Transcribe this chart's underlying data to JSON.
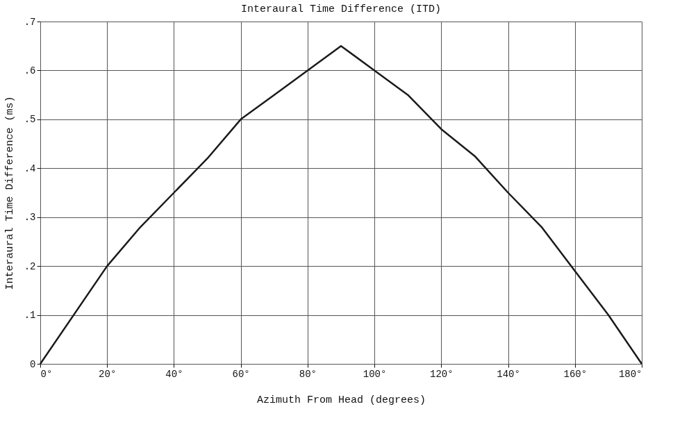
{
  "chart_data": {
    "type": "line",
    "title": "Interaural Time Difference (ITD)",
    "xlabel": "Azimuth From Head (degrees)",
    "ylabel": "Interaural Time Difference (ms)",
    "x": [
      0,
      20,
      30,
      40,
      50,
      60,
      70,
      80,
      90,
      100,
      110,
      120,
      130,
      140,
      150,
      160,
      170,
      180
    ],
    "series": [
      {
        "color": "#1a1a1a",
        "values": [
          0,
          0.2,
          0.28,
          0.35,
          0.42,
          0.5,
          0.55,
          0.6,
          0.65,
          0.6,
          0.55,
          0.48,
          0.425,
          0.35,
          0.28,
          0.19,
          0.1,
          0
        ]
      }
    ],
    "xlim": [
      0,
      180
    ],
    "ylim": [
      0,
      0.7
    ],
    "xticks": [
      {
        "value": 0,
        "label": "0°"
      },
      {
        "value": 20,
        "label": "20°"
      },
      {
        "value": 40,
        "label": "40°"
      },
      {
        "value": 60,
        "label": "60°"
      },
      {
        "value": 80,
        "label": "80°"
      },
      {
        "value": 100,
        "label": "100°"
      },
      {
        "value": 120,
        "label": "120°"
      },
      {
        "value": 140,
        "label": "140°"
      },
      {
        "value": 160,
        "label": "160°"
      },
      {
        "value": 180,
        "label": "180°"
      }
    ],
    "yticks": [
      0,
      {
        "value": 0.1,
        "label": ".1"
      },
      {
        "value": 0.2,
        "label": ".2"
      },
      {
        "value": 0.3,
        "label": ".3"
      },
      {
        "value": 0.4,
        "label": ".4"
      },
      {
        "value": 0.5,
        "label": ".5"
      },
      {
        "value": 0.6,
        "label": ".6"
      },
      {
        "value": 0.7,
        "label": ".7"
      }
    ],
    "grid": true,
    "line_style": "solid",
    "marker": "none"
  }
}
